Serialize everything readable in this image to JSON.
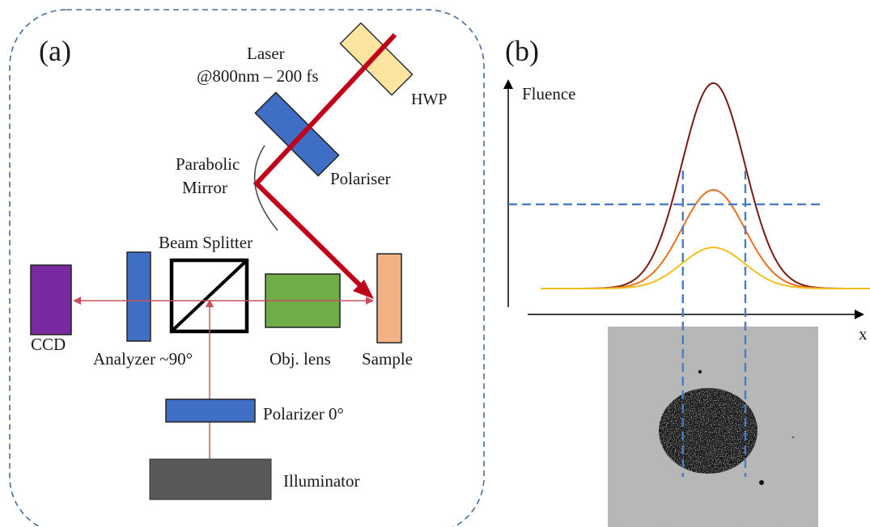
{
  "panel_a": {
    "letter": "(a)",
    "labels": {
      "laser_line1": "Laser",
      "laser_line2": "@800nm – 200 fs",
      "hwp": "HWP",
      "polariser": "Polariser",
      "parabolic_line1": "Parabolic",
      "parabolic_line2": "Mirror",
      "beam_splitter": "Beam Splitter",
      "ccd": "CCD",
      "analyzer": "Analyzer ~90°",
      "obj_lens": "Obj. lens",
      "sample": "Sample",
      "polarizer0": "Polarizer 0°",
      "illuminator": "Illuminator"
    },
    "colors": {
      "border": "#4a6b9a",
      "laser_beam": "#c0001a",
      "probe_beam": "#c9505a",
      "hwp": "#fde5a0",
      "polariser": "#3f6fc4",
      "analyzer": "#3f6fc4",
      "polarizer0": "#3f6fc4",
      "ccd": "#7a2aa0",
      "obj_lens": "#6fad47",
      "sample": "#f4b183",
      "illuminator": "#595959"
    }
  },
  "panel_b": {
    "letter": "(b)",
    "ylabel": "Fluence",
    "xlabel": "x",
    "colors": {
      "high": "#7b1a10",
      "medium": "#e8701f",
      "low": "#f0c020",
      "threshold": "#4a7bc8"
    },
    "chart_data": {
      "type": "line",
      "title": "",
      "xlabel": "x",
      "ylabel": "Fluence",
      "grid": false,
      "x_range": [
        -3.4,
        3.1
      ],
      "ylim": [
        0,
        1.07
      ],
      "series": [
        {
          "color": "#7b1a10",
          "peak": 1.0,
          "center": 0.0,
          "sigma": 0.62
        },
        {
          "color": "#e8701f",
          "peak": 0.48,
          "center": 0.0,
          "sigma": 0.62
        },
        {
          "color": "#f0c020",
          "peak": 0.2,
          "center": 0.0,
          "sigma": 0.62
        }
      ],
      "threshold": 0.41,
      "crossing_x": [
        -0.6,
        0.63
      ]
    }
  }
}
